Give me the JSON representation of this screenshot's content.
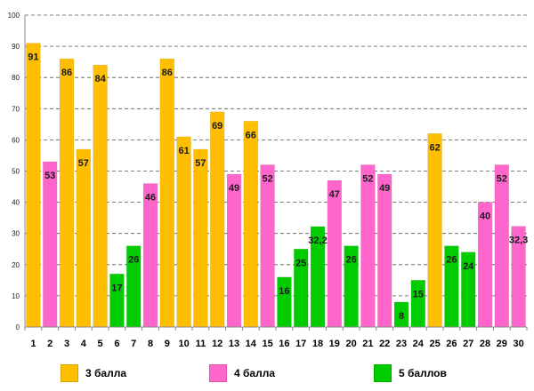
{
  "chart_data": {
    "type": "bar",
    "categories": [
      "1",
      "2",
      "3",
      "4",
      "5",
      "6",
      "7",
      "8",
      "9",
      "10",
      "11",
      "12",
      "13",
      "14",
      "15",
      "16",
      "17",
      "18",
      "19",
      "20",
      "21",
      "22",
      "23",
      "24",
      "25",
      "26",
      "27",
      "28",
      "29",
      "30"
    ],
    "values": [
      91,
      53,
      86,
      57,
      84,
      17,
      26,
      46,
      86,
      61,
      57,
      69,
      49,
      66,
      52,
      16,
      25,
      32.2,
      47,
      26,
      52,
      49,
      8,
      15,
      62,
      26,
      24,
      40,
      52,
      32.3
    ],
    "value_labels": [
      "91",
      "53",
      "86",
      "57",
      "84",
      "17",
      "26",
      "46",
      "86",
      "61",
      "57",
      "69",
      "49",
      "66",
      "52",
      "16",
      "25",
      "32,2",
      "47",
      "26",
      "52",
      "49",
      "8",
      "15",
      "62",
      "26",
      "24",
      "40",
      "52",
      "32,3"
    ],
    "groups": [
      "3",
      "4",
      "3",
      "3",
      "3",
      "5",
      "5",
      "4",
      "3",
      "3",
      "3",
      "3",
      "4",
      "3",
      "4",
      "5",
      "5",
      "5",
      "4",
      "5",
      "4",
      "4",
      "5",
      "5",
      "3",
      "5",
      "5",
      "4",
      "4",
      "4"
    ],
    "yticks": [
      "0",
      "10",
      "20",
      "30",
      "40",
      "50",
      "60",
      "70",
      "80",
      "90",
      "100"
    ],
    "ylim": [
      0,
      100
    ],
    "grid": true,
    "title": "",
    "xlabel": "",
    "ylabel": "",
    "legend": [
      {
        "group": "3",
        "label": "3 балла",
        "color": "#FFBF00"
      },
      {
        "group": "4",
        "label": "4 балла",
        "color": "#FF66CC"
      },
      {
        "group": "5",
        "label": "5 баллов",
        "color": "#00CC00"
      }
    ]
  }
}
